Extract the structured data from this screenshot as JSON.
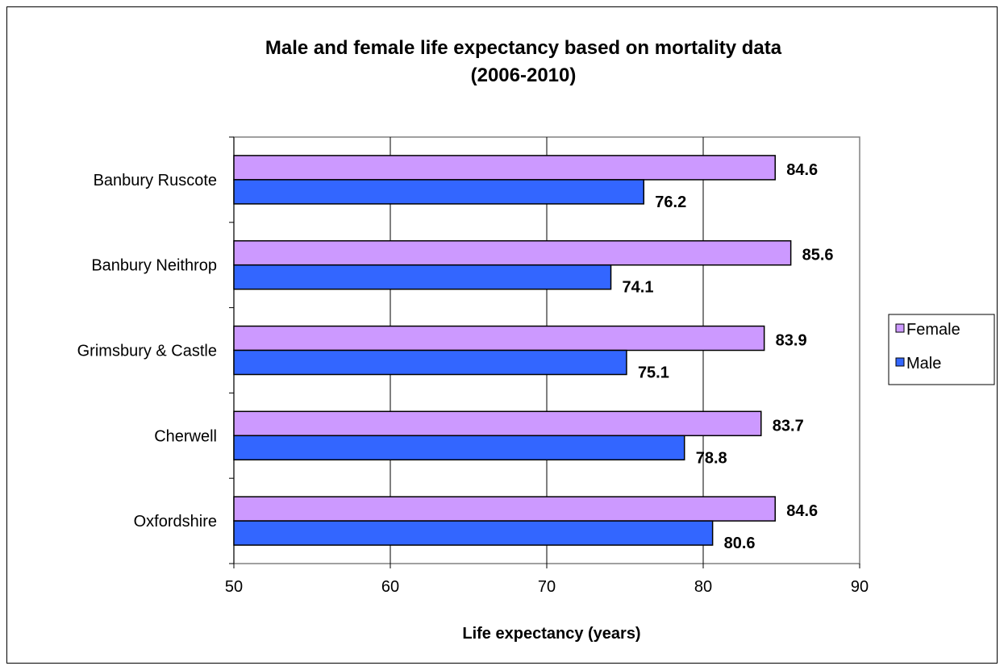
{
  "chart_data": {
    "type": "bar",
    "orientation": "horizontal",
    "title": "Male and female life expectancy based on mortality data",
    "subtitle": "(2006-2010)",
    "xlabel": "Life expectancy (years)",
    "ylabel": "",
    "xlim": [
      50,
      90
    ],
    "x_ticks": [
      50,
      60,
      70,
      80,
      90
    ],
    "grid": true,
    "legend_position": "right",
    "categories": [
      "Banbury Ruscote",
      "Banbury Neithrop",
      "Grimsbury & Castle",
      "Cherwell",
      "Oxfordshire"
    ],
    "series": [
      {
        "name": "Female",
        "color": "#cc99ff",
        "values": [
          84.6,
          85.6,
          83.9,
          83.7,
          84.6
        ],
        "labels": [
          "84.6",
          "85.6",
          "83.9",
          "83.7",
          "84.6"
        ]
      },
      {
        "name": "Male",
        "color": "#3366ff",
        "values": [
          76.2,
          74.1,
          75.1,
          78.8,
          80.6
        ],
        "labels": [
          "76.2",
          "74.1",
          "75.1",
          "78.8",
          "80.6"
        ]
      }
    ]
  }
}
